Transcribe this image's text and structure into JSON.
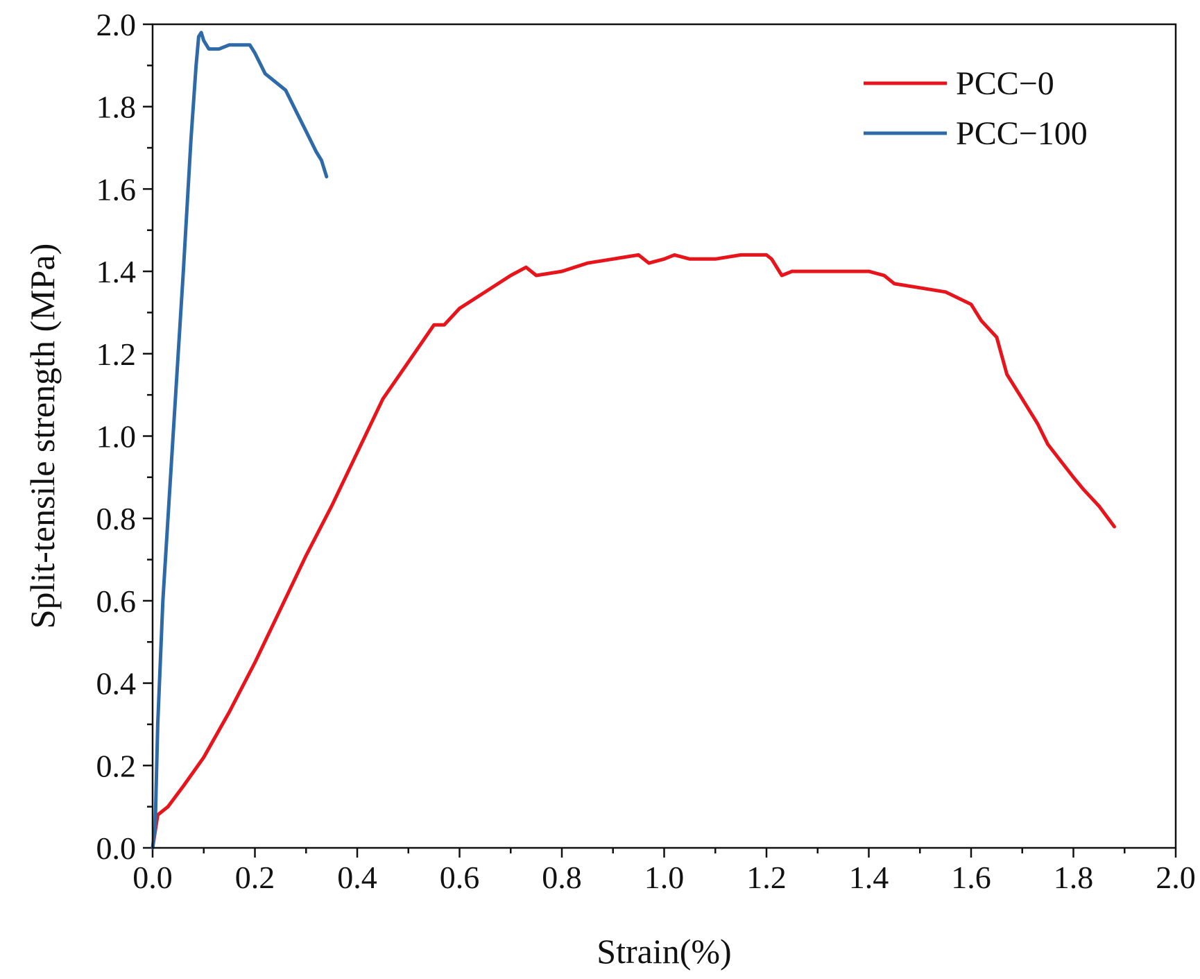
{
  "chart_data": {
    "type": "line",
    "title": "",
    "xlabel": "Strain(%)",
    "ylabel": "Split-tensile strength  (MPa)",
    "xlim": [
      0.0,
      2.0
    ],
    "ylim": [
      0.0,
      2.0
    ],
    "grid": false,
    "legend_position": "top-right",
    "x_ticks": [
      "0.0",
      "0.2",
      "0.4",
      "0.6",
      "0.8",
      "1.0",
      "1.2",
      "1.4",
      "1.6",
      "1.8",
      "2.0"
    ],
    "y_ticks": [
      "0.0",
      "0.2",
      "0.4",
      "0.6",
      "0.8",
      "1.0",
      "1.2",
      "1.4",
      "1.6",
      "1.8",
      "2.0"
    ],
    "series": [
      {
        "name": "PCC−0",
        "color": "#e8141b",
        "x": [
          0.0,
          0.01,
          0.03,
          0.06,
          0.1,
          0.15,
          0.2,
          0.25,
          0.3,
          0.35,
          0.4,
          0.45,
          0.5,
          0.55,
          0.57,
          0.6,
          0.65,
          0.7,
          0.73,
          0.75,
          0.8,
          0.85,
          0.9,
          0.95,
          0.97,
          1.0,
          1.02,
          1.05,
          1.1,
          1.15,
          1.17,
          1.2,
          1.21,
          1.23,
          1.25,
          1.3,
          1.35,
          1.4,
          1.43,
          1.45,
          1.5,
          1.55,
          1.6,
          1.62,
          1.65,
          1.67,
          1.7,
          1.73,
          1.75,
          1.8,
          1.82,
          1.85,
          1.88
        ],
        "y": [
          0.0,
          0.08,
          0.1,
          0.15,
          0.22,
          0.33,
          0.45,
          0.58,
          0.71,
          0.83,
          0.96,
          1.09,
          1.18,
          1.27,
          1.27,
          1.31,
          1.35,
          1.39,
          1.41,
          1.39,
          1.4,
          1.42,
          1.43,
          1.44,
          1.42,
          1.43,
          1.44,
          1.43,
          1.43,
          1.44,
          1.44,
          1.44,
          1.43,
          1.39,
          1.4,
          1.4,
          1.4,
          1.4,
          1.39,
          1.37,
          1.36,
          1.35,
          1.32,
          1.28,
          1.24,
          1.15,
          1.09,
          1.03,
          0.98,
          0.9,
          0.87,
          0.83,
          0.78
        ]
      },
      {
        "name": "PCC−100",
        "color": "#2e6aa8",
        "x": [
          0.0,
          0.005,
          0.01,
          0.02,
          0.04,
          0.06,
          0.075,
          0.085,
          0.09,
          0.095,
          0.1,
          0.11,
          0.13,
          0.15,
          0.17,
          0.19,
          0.2,
          0.22,
          0.24,
          0.26,
          0.28,
          0.3,
          0.32,
          0.33,
          0.34
        ],
        "y": [
          0.0,
          0.05,
          0.3,
          0.6,
          1.0,
          1.4,
          1.72,
          1.9,
          1.97,
          1.98,
          1.96,
          1.94,
          1.94,
          1.95,
          1.95,
          1.95,
          1.93,
          1.88,
          1.86,
          1.84,
          1.79,
          1.74,
          1.69,
          1.67,
          1.63
        ]
      }
    ]
  }
}
